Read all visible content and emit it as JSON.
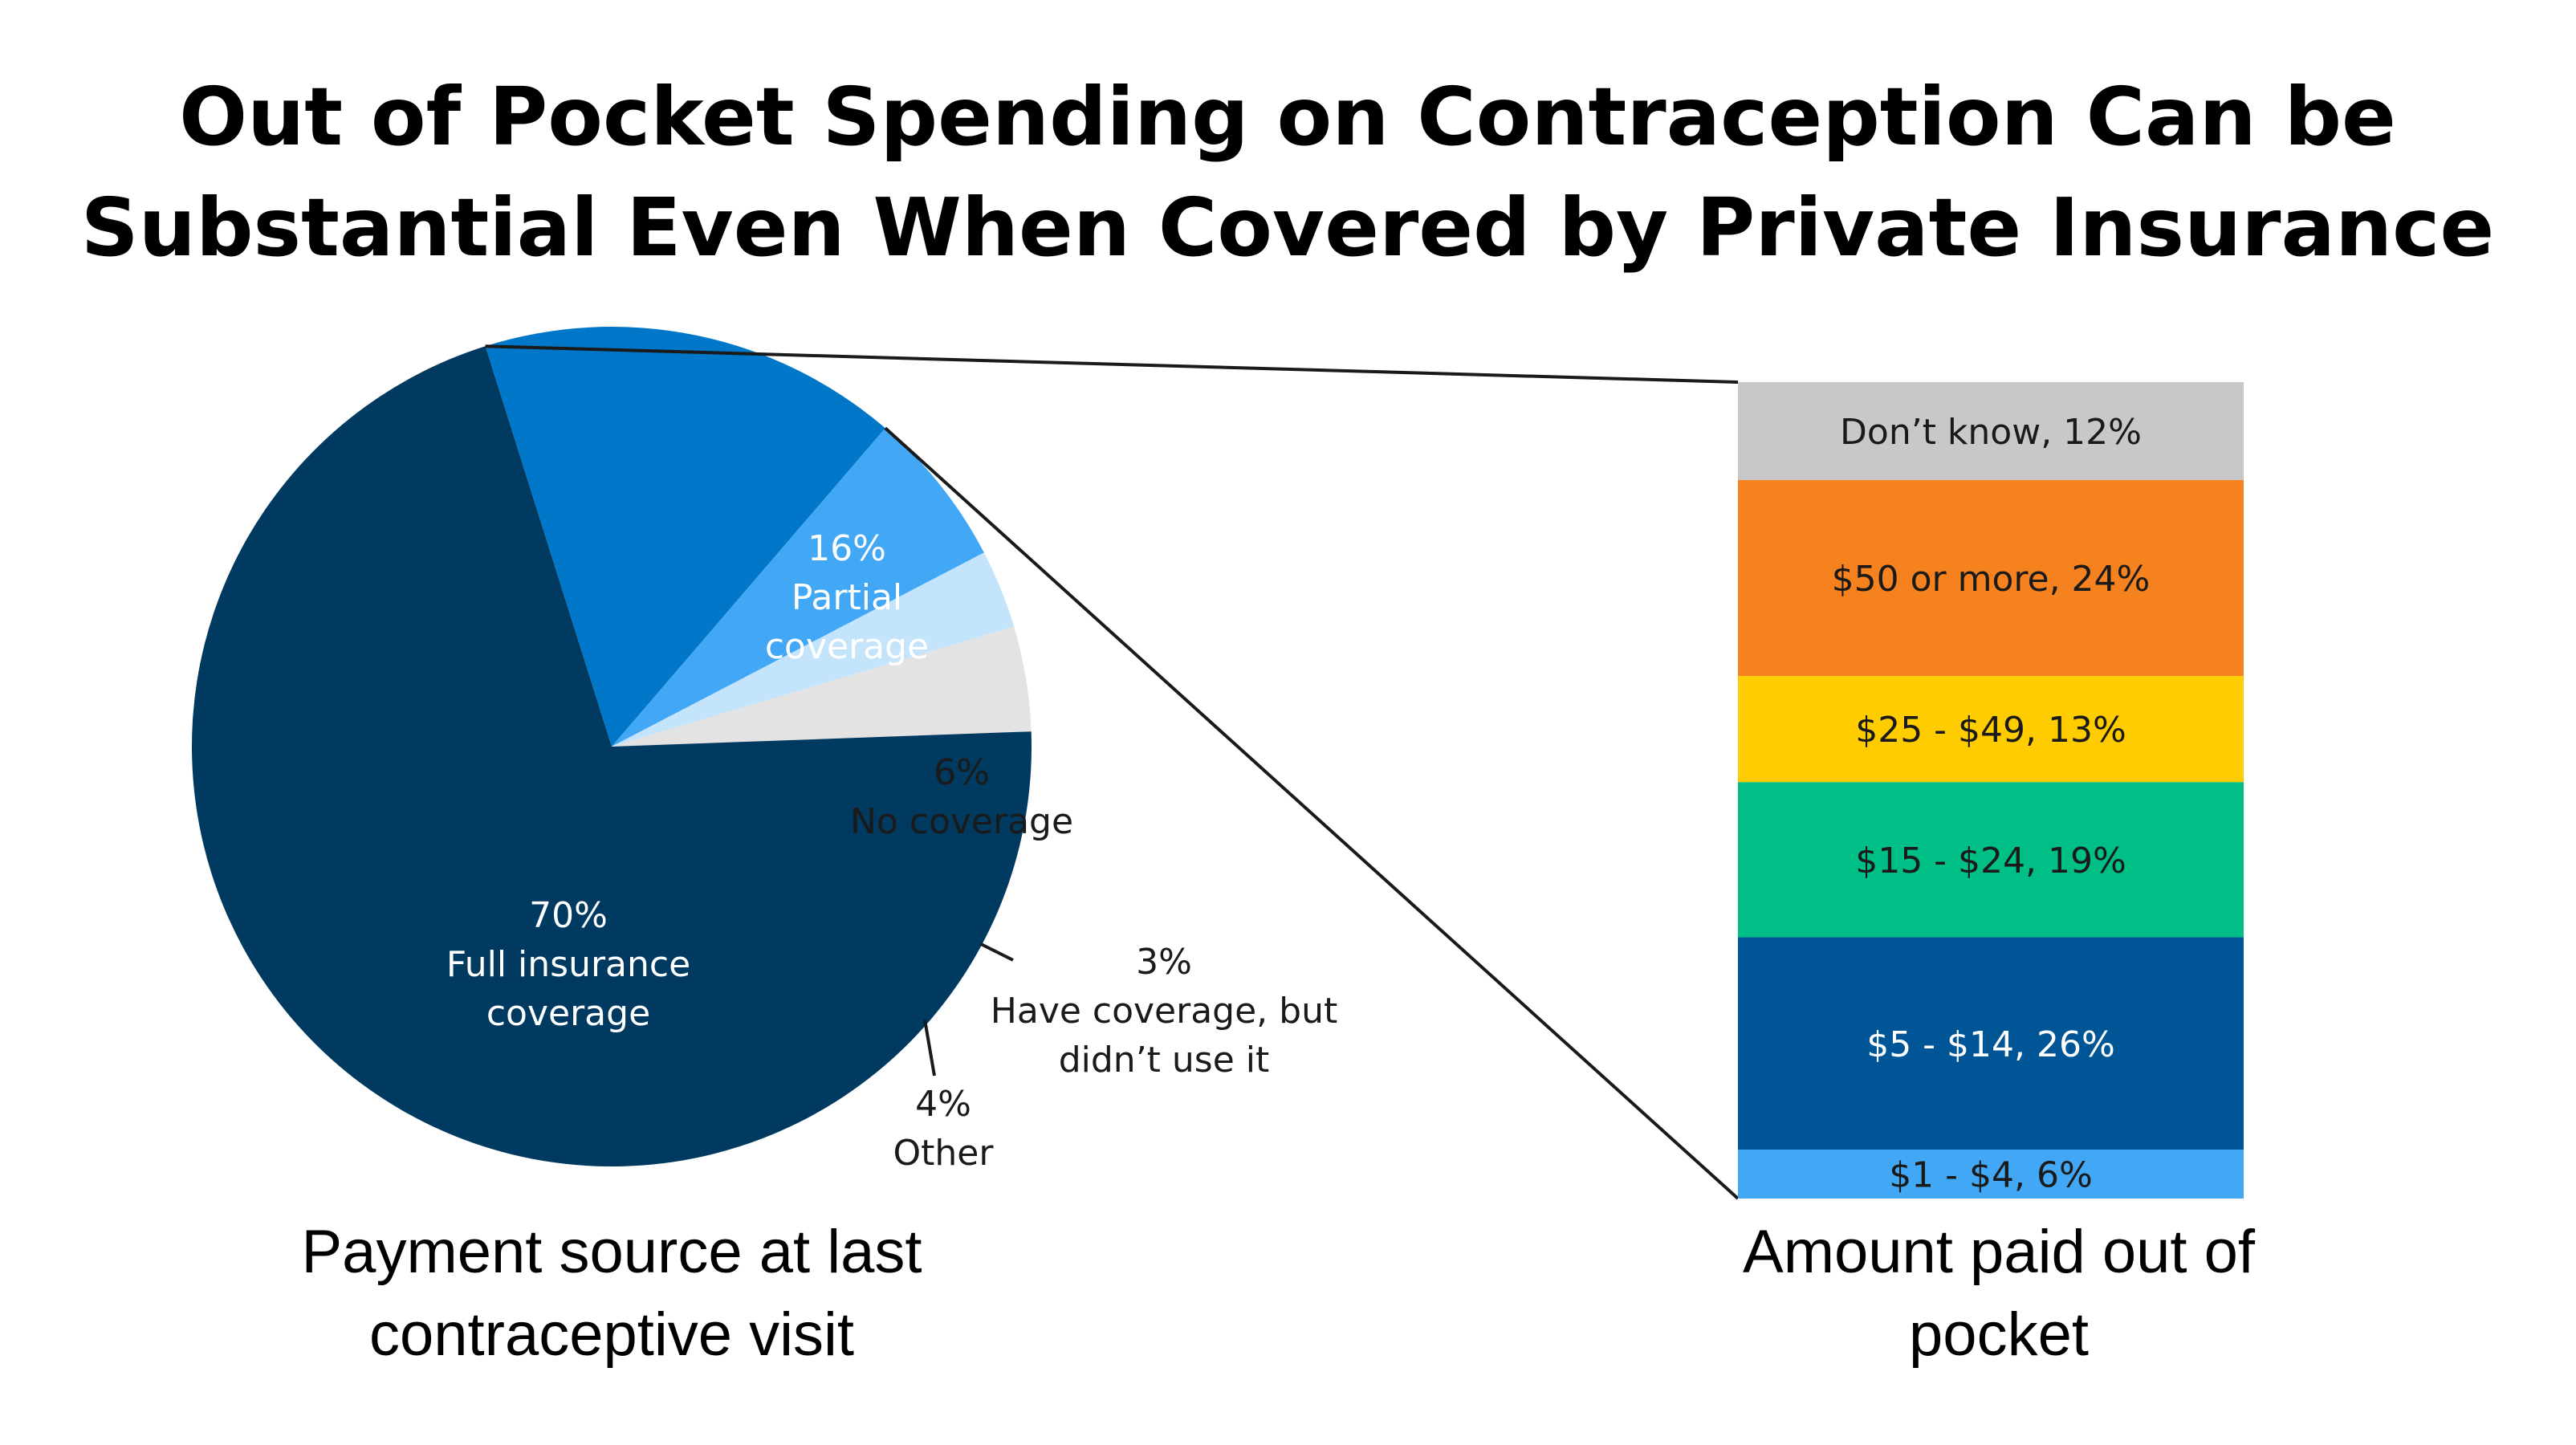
{
  "title": {
    "line1": "Out of Pocket Spending on Contraception Can be",
    "line2": "Substantial Even When Covered by Private Insurance"
  },
  "chart_data": [
    {
      "type": "pie",
      "caption_line1": "Payment source at last",
      "caption_line2": "contraceptive visit",
      "unit": "%",
      "slices": [
        {
          "name": "Partial coverage",
          "value": 16,
          "label_lines": [
            "16%",
            "Partial",
            "coverage"
          ],
          "color": "#0077c8",
          "label_color": "#ffffff"
        },
        {
          "name": "No coverage",
          "value": 6,
          "label_lines": [
            "6%",
            "No coverage"
          ],
          "color": "#42a8f5",
          "label_color": "#1a1a1a"
        },
        {
          "name": "Have coverage, but didn't use it",
          "value": 3,
          "label_lines": [
            "3%",
            "Have coverage, but",
            "didn’t use it"
          ],
          "color": "#c3e4fb",
          "label_color": "#1a1a1a"
        },
        {
          "name": "Other",
          "value": 4,
          "label_lines": [
            "4%",
            "Other"
          ],
          "color": "#e3e3e3",
          "label_color": "#1a1a1a"
        },
        {
          "name": "Full insurance coverage",
          "value": 70,
          "label_lines": [
            "70%",
            "Full insurance",
            "coverage"
          ],
          "color": "#003a61",
          "label_color": "#ffffff"
        }
      ]
    },
    {
      "type": "bar",
      "stacked": true,
      "caption_line1": "Amount paid out of",
      "caption_line2": "pocket",
      "unit": "%",
      "segments": [
        {
          "label": "Don’t know, 12%",
          "value": 12,
          "color": "#c8c8c8",
          "text_color": "#1a1a1a"
        },
        {
          "label": "$50 or more, 24%",
          "value": 24,
          "color": "#f5821f",
          "text_color": "#1a1a1a"
        },
        {
          "label": "$25 - $49, 13%",
          "value": 13,
          "color": "#ffcc00",
          "text_color": "#1a1a1a"
        },
        {
          "label": "$15 - $24, 19%",
          "value": 19,
          "color": "#00bf86",
          "text_color": "#1a1a1a"
        },
        {
          "label": "$5 - $14, 26%",
          "value": 26,
          "color": "#005596",
          "text_color": "#ffffff"
        },
        {
          "label": "$1 - $4, 6%",
          "value": 6,
          "color": "#42a8f5",
          "text_color": "#1a1a1a"
        }
      ]
    }
  ]
}
